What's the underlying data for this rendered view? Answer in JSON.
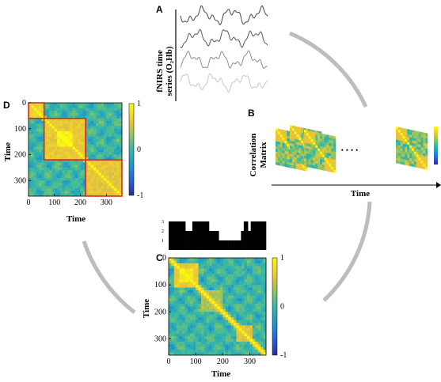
{
  "panels": {
    "A": {
      "label": "A",
      "ylabel_line1": "fNIRS time",
      "ylabel_line2": "series (O₂Hb)"
    },
    "B": {
      "label": "B",
      "ylabel_line1": "Correlation",
      "ylabel_line2": "Matrix",
      "ellipsis": "••••",
      "xlabel": "Time"
    },
    "C": {
      "label": "C",
      "xlabel": "Time",
      "ylabel": "Time",
      "xticks": [
        "0",
        "100",
        "200",
        "300"
      ],
      "yticks": [
        "0",
        "100",
        "200",
        "300"
      ],
      "colorbar_ticks": [
        "1",
        "0",
        "-1"
      ],
      "state_ticks": [
        "3",
        "2",
        "1"
      ]
    },
    "D": {
      "label": "D",
      "xlabel": "Time",
      "ylabel": "Time",
      "xticks": [
        "0",
        "100",
        "200",
        "300"
      ],
      "yticks": [
        "0",
        "100",
        "200",
        "300"
      ],
      "colorbar_ticks": [
        "1",
        "0",
        "-1"
      ]
    }
  },
  "colors": {
    "matrix_low": "#2b3fa8",
    "matrix_mid": "#35b8a6",
    "matrix_high": "#f7e832",
    "cluster_box": "#d42020",
    "arc": "#bdbdbd"
  },
  "state_sequence": [
    3,
    3,
    3,
    3,
    3,
    3,
    3,
    3,
    3,
    3,
    3,
    3,
    2,
    2,
    2,
    2,
    2,
    3,
    3,
    3,
    3,
    3,
    3,
    3,
    3,
    3,
    3,
    3,
    3,
    2,
    2,
    2,
    2,
    2,
    2,
    2,
    1,
    1,
    1,
    1,
    1,
    1,
    1,
    1,
    1,
    1,
    1,
    1,
    1,
    1,
    1,
    1,
    2,
    2,
    3,
    3,
    3,
    2,
    2,
    3,
    3,
    3,
    3,
    3,
    3,
    3,
    3,
    3,
    3,
    3
  ]
}
